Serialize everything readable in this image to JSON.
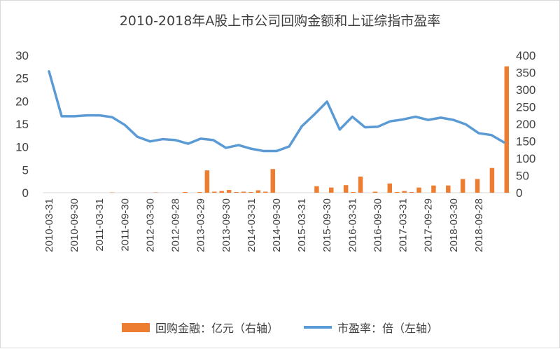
{
  "colors": {
    "bar": "#ED7D31",
    "line": "#5B9BD5",
    "text": "#404040",
    "axis": "#d9d9d9"
  },
  "chart_data": {
    "type": "bar+line",
    "title": "2010-2018年A股上市公司回购金额和上证综指市盈率",
    "left_axis": {
      "min": 0,
      "max": 30,
      "ticks": [
        0,
        5,
        10,
        15,
        20,
        25,
        30
      ]
    },
    "right_axis": {
      "min": 0,
      "max": 400,
      "ticks": [
        0,
        50,
        100,
        150,
        200,
        250,
        300,
        350,
        400
      ]
    },
    "x_tick_labels": [
      "2010-03-31",
      "2010-09-30",
      "2011-03-31",
      "2011-09-30",
      "2012-03-30",
      "2012-09-28",
      "2013-03-29",
      "2013-09-30",
      "2014-03-31",
      "2014-09-30",
      "2015-03-31",
      "2015-09-30",
      "2016-03-31",
      "2016-09-30",
      "2017-03-31",
      "2017-09-29",
      "2018-03-30",
      "2018-09-28"
    ],
    "series": [
      {
        "name": "回购金融：亿元（右轴）",
        "type": "bar",
        "axis": "right",
        "values": [
          0,
          0,
          0,
          0,
          0,
          0,
          0,
          0,
          0,
          1,
          0,
          0,
          0,
          0,
          0,
          1,
          0,
          0,
          0,
          2,
          0,
          2,
          65,
          3,
          5,
          8,
          2,
          3,
          2,
          7,
          3,
          69,
          0,
          0,
          0,
          0,
          0,
          19,
          0,
          15,
          0,
          22,
          2,
          47,
          0,
          3,
          0,
          27,
          2,
          5,
          2,
          15,
          0,
          21,
          0,
          21,
          0,
          40,
          0,
          40,
          0,
          72,
          0,
          368
        ]
      },
      {
        "name": "市盈率：倍（左轴）",
        "type": "line",
        "axis": "left",
        "values": [
          26.5,
          16.7,
          16.7,
          16.9,
          16.9,
          16.5,
          14.8,
          12.2,
          11.2,
          11.7,
          11.5,
          10.7,
          11.8,
          11.5,
          9.8,
          10.4,
          9.6,
          9.1,
          9.1,
          10.1,
          14.5,
          17.1,
          19.9,
          13.8,
          16.6,
          14.3,
          14.4,
          15.6,
          16.0,
          16.6,
          15.9,
          16.4,
          15.9,
          14.9,
          13.0,
          12.6,
          11.0
        ]
      }
    ],
    "legend": {
      "position": "bottom"
    }
  }
}
